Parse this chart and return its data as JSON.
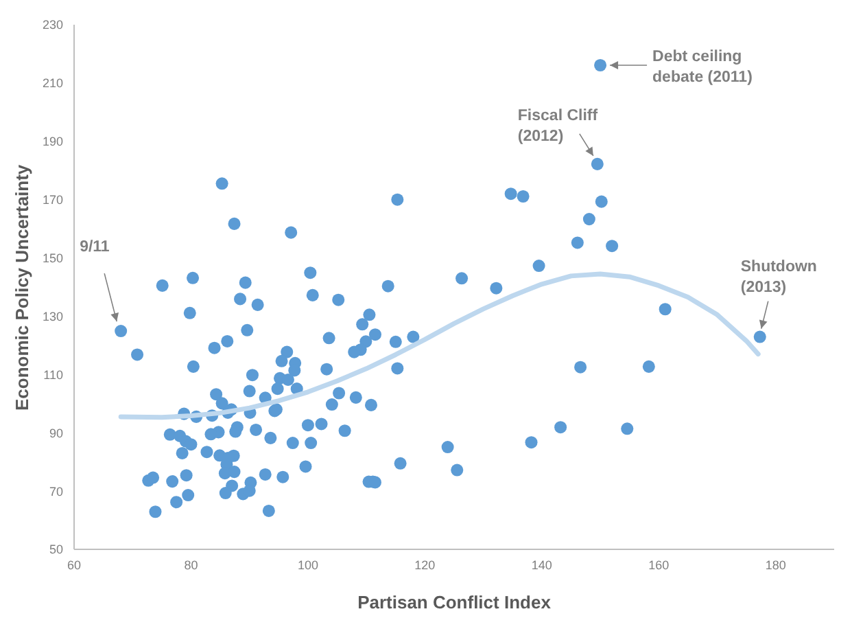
{
  "chart_data": {
    "type": "scatter",
    "xlabel": "Partisan Conflict Index",
    "ylabel": "Economic Policy Uncertainty",
    "xlim": [
      60,
      190
    ],
    "xticks": [
      60,
      80,
      100,
      120,
      140,
      160,
      180
    ],
    "ylim": [
      50,
      230
    ],
    "yticks": [
      50,
      70,
      90,
      110,
      130,
      150,
      170,
      190,
      210,
      230
    ],
    "series": [
      {
        "type": "scatter",
        "marker": "circle",
        "color": "#5b9bd5",
        "x": [
          68.0,
          70.8,
          75.1,
          80.3,
          85.3,
          87.4,
          97.1,
          100.4,
          115.3,
          89.3,
          88.4,
          100.8,
          105.2,
          113.7,
          126.3,
          91.4,
          79.8,
          110.5,
          109.3,
          111.5,
          109.9,
          109.0,
          107.9,
          115.0,
          118.0,
          115.3,
          103.6,
          89.6,
          86.2,
          84.0,
          80.4,
          96.4,
          95.5,
          97.8,
          97.7,
          95.2,
          96.6,
          103.2,
          90.5,
          90.0,
          94.8,
          98.1,
          105.3,
          108.2,
          104.1,
          110.8,
          84.3,
          85.3,
          92.7,
          83.6,
          80.9,
          78.8,
          86.3,
          86.9,
          90.1,
          94.3,
          94.6,
          87.9,
          87.6,
          84.7,
          83.4,
          91.1,
          100.0,
          102.3,
          106.3,
          76.4,
          78.1,
          79.1,
          80.0,
          93.6,
          97.4,
          100.5,
          78.5,
          82.7,
          84.9,
          87.3,
          86.3,
          86.1,
          85.8,
          87.4,
          79.2,
          72.7,
          73.5,
          76.8,
          92.7,
          95.7,
          99.6,
          90.2,
          87.0,
          85.9,
          88.9,
          90.0,
          79.5,
          77.5,
          73.9,
          93.3,
          110.4,
          111.1,
          111.5,
          115.8,
          123.9,
          125.5,
          132.2,
          161.1,
          177.3,
          146.6,
          158.3,
          143.2,
          138.2,
          154.6,
          150.0,
          149.5,
          134.7,
          136.8,
          150.2,
          148.1,
          146.1,
          152.0,
          139.5
        ],
        "values": [
          124.9,
          116.8,
          140.5,
          143.1,
          175.5,
          161.7,
          158.7,
          144.9,
          170.0,
          141.5,
          135.9,
          137.2,
          135.6,
          140.3,
          143.0,
          133.9,
          131.1,
          130.5,
          127.2,
          123.7,
          121.3,
          118.5,
          117.7,
          121.2,
          122.9,
          112.1,
          122.5,
          125.2,
          121.4,
          119.1,
          112.7,
          117.7,
          114.6,
          113.9,
          111.4,
          108.7,
          108.2,
          111.8,
          109.8,
          104.3,
          105.1,
          105.1,
          103.6,
          102.1,
          99.7,
          99.5,
          103.2,
          100.1,
          102.0,
          95.9,
          95.5,
          96.5,
          96.9,
          98.0,
          96.9,
          97.5,
          98.0,
          91.9,
          90.4,
          90.2,
          89.5,
          91.0,
          92.6,
          93.0,
          90.7,
          89.4,
          88.9,
          87.1,
          86.0,
          88.2,
          86.5,
          86.5,
          83.0,
          83.4,
          82.2,
          82.1,
          81.3,
          79.1,
          76.1,
          76.6,
          75.4,
          73.6,
          74.6,
          73.3,
          75.7,
          74.8,
          78.4,
          72.9,
          71.8,
          69.3,
          69.0,
          70.1,
          68.6,
          66.2,
          62.9,
          63.2,
          73.2,
          73.2,
          73.0,
          79.5,
          85.1,
          77.2,
          139.6,
          132.4,
          122.9,
          112.5,
          112.7,
          91.9,
          86.7,
          91.4,
          216.1,
          182.2,
          172.0,
          171.1,
          169.3,
          163.3,
          155.2,
          154.1,
          147.3
        ]
      },
      {
        "type": "line",
        "color": "#bdd7ee",
        "x": [
          68,
          75,
          80,
          85,
          90,
          95,
          100,
          105,
          110,
          115,
          120,
          125,
          130,
          135,
          140,
          145,
          150,
          155,
          160,
          165,
          170,
          175,
          177
        ],
        "values": [
          95.5,
          95.3,
          95.8,
          96.8,
          98.5,
          101,
          104,
          107.8,
          112,
          116.8,
          122,
          127.5,
          132.5,
          137,
          141,
          143.8,
          144.5,
          143.5,
          140.5,
          136.5,
          130.5,
          121.5,
          117
        ]
      }
    ],
    "annotations": [
      {
        "text": "9/11",
        "x": 68.0,
        "y": 124.9
      },
      {
        "text": "Debt ceiling\ndebate (2011)",
        "x": 150.0,
        "y": 216.1
      },
      {
        "text": "Fiscal Cliff\n(2012)",
        "x": 149.5,
        "y": 182.2
      },
      {
        "text": "Shutdown\n(2013)",
        "x": 177.3,
        "y": 122.9
      }
    ]
  }
}
